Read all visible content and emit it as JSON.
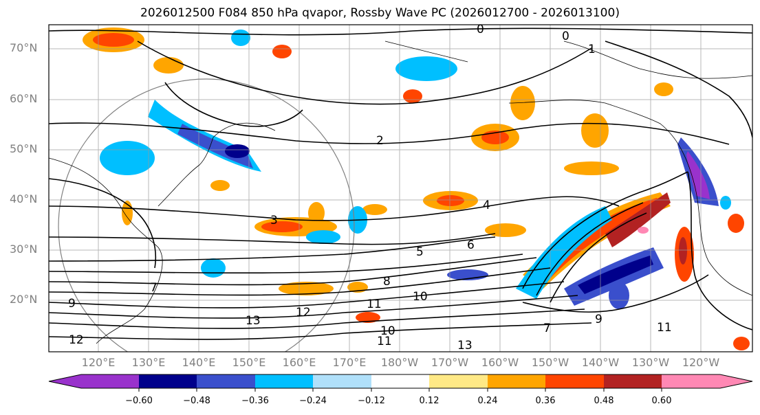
{
  "title": "2026012500 F084 850 hPa qvapor, Rossby Wave PC (2026012700 - 2026013100)",
  "map": {
    "lat_labels": [
      "70°N",
      "60°N",
      "50°N",
      "40°N",
      "30°N",
      "20°N"
    ],
    "lon_labels": [
      "120°E",
      "130°E",
      "140°E",
      "150°E",
      "160°E",
      "170°E",
      "180°W",
      "170°W",
      "160°W",
      "150°W",
      "140°W",
      "130°W",
      "120°W"
    ],
    "contour_labels": [
      "0",
      "0",
      "1",
      "2",
      "3",
      "4",
      "5",
      "6",
      "7",
      "7",
      "8",
      "9",
      "9",
      "10",
      "10",
      "11",
      "11",
      "11",
      "12",
      "12",
      "13",
      "13"
    ]
  },
  "colorbar": {
    "tick_labels": [
      "−0.60",
      "−0.48",
      "−0.36",
      "−0.24",
      "−0.12",
      "0.12",
      "0.24",
      "0.36",
      "0.48",
      "0.60"
    ],
    "colors": [
      "#9932cc",
      "#00008b",
      "#3a4fcc",
      "#00bfff",
      "#b0e0fa",
      "#ffffff",
      "#ffe986",
      "#ffa500",
      "#ff4500",
      "#b22222",
      "#ff88b4"
    ]
  }
}
